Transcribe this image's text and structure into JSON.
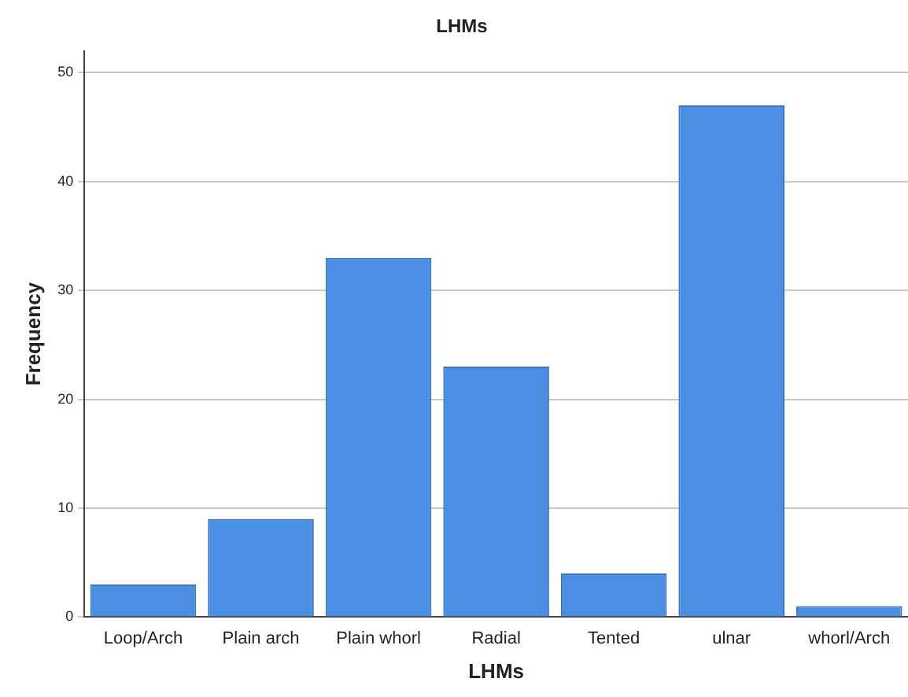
{
  "chart_data": {
    "type": "bar",
    "title": "LHMs",
    "xlabel": "LHMs",
    "ylabel": "Frequency",
    "categories": [
      "Loop/Arch",
      "Plain arch",
      "Plain whorl",
      "Radial",
      "Tented",
      "ulnar",
      "whorl/Arch"
    ],
    "values": [
      3,
      9,
      33,
      23,
      4,
      47,
      1
    ],
    "color": "#4a8fe3",
    "ylim": [
      0,
      52
    ],
    "yticks": [
      0,
      10,
      20,
      30,
      40,
      50
    ],
    "grid": "y",
    "legend": false
  }
}
